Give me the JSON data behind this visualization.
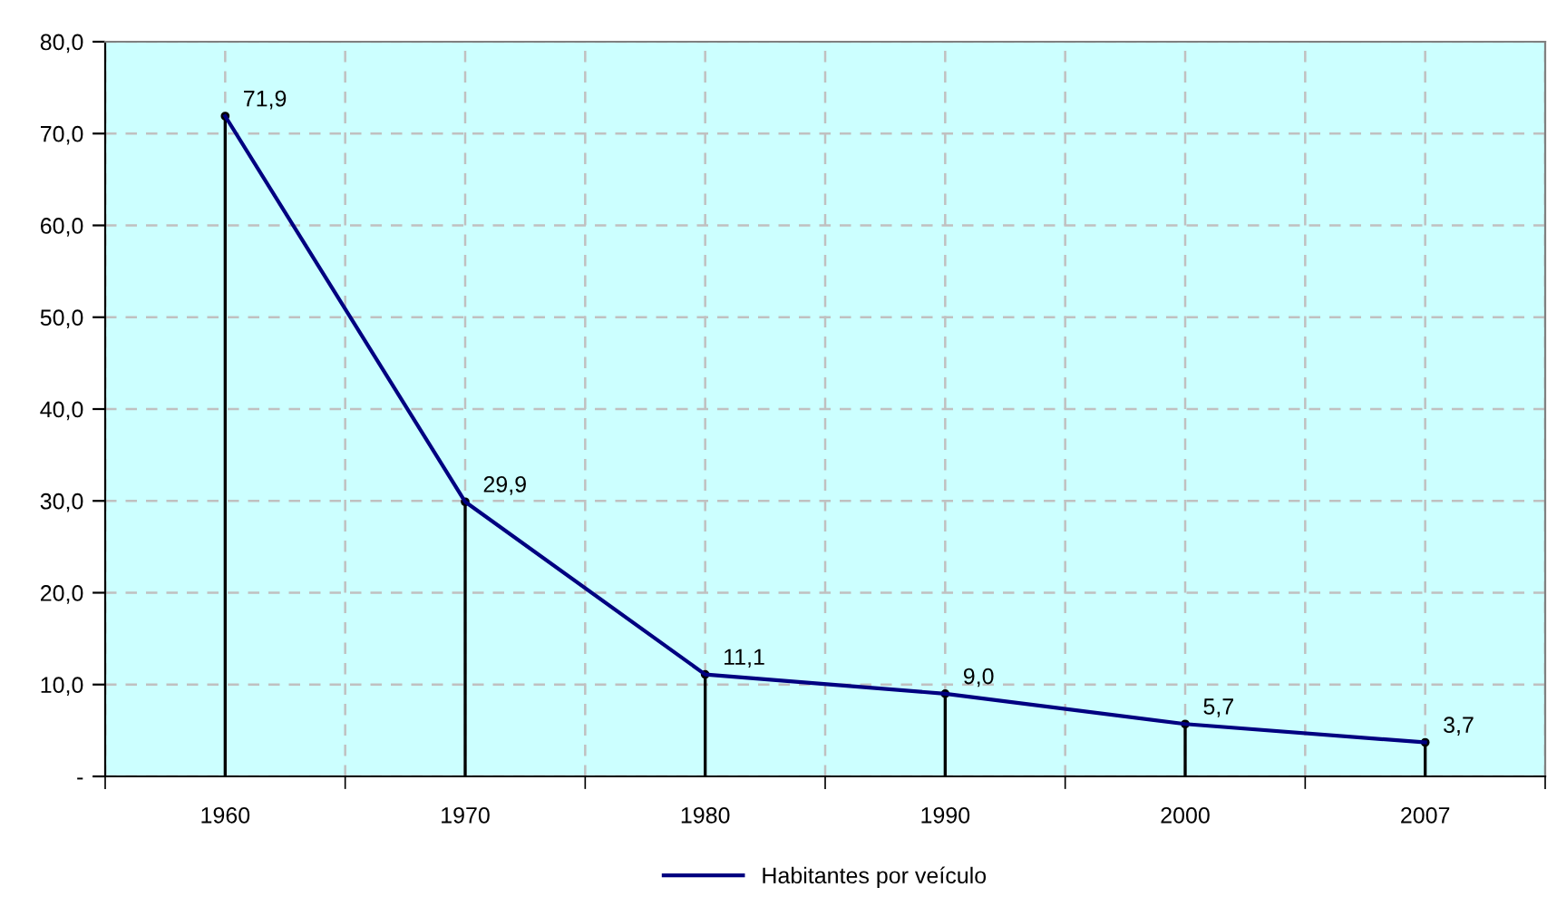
{
  "chart_data": {
    "type": "line",
    "categories": [
      "1960",
      "1970",
      "1980",
      "1990",
      "2000",
      "2007"
    ],
    "series": [
      {
        "name": "Habitantes por veículo",
        "color": "#000080",
        "values": [
          71.9,
          29.9,
          11.1,
          9.0,
          5.7,
          3.7
        ],
        "value_labels": [
          "71,9",
          "29,9",
          "11,1",
          "9,0",
          "5,7",
          "3,7"
        ]
      },
      {
        "type": "lollipop",
        "color": "#000000",
        "values": [
          71.9,
          29.9,
          11.1,
          9.0,
          5.7,
          3.7
        ]
      }
    ],
    "ylim": [
      0,
      80
    ],
    "yticks": [
      {
        "value": 0,
        "label": "-"
      },
      {
        "value": 10,
        "label": "10,0"
      },
      {
        "value": 20,
        "label": "20,0"
      },
      {
        "value": 30,
        "label": "30,0"
      },
      {
        "value": 40,
        "label": "40,0"
      },
      {
        "value": 50,
        "label": "50,0"
      },
      {
        "value": 60,
        "label": "60,0"
      },
      {
        "value": 70,
        "label": "70,0"
      },
      {
        "value": 80,
        "label": "80,0"
      }
    ],
    "grid": true,
    "legend": "bottom",
    "marker": "none",
    "line_style": "solid"
  }
}
